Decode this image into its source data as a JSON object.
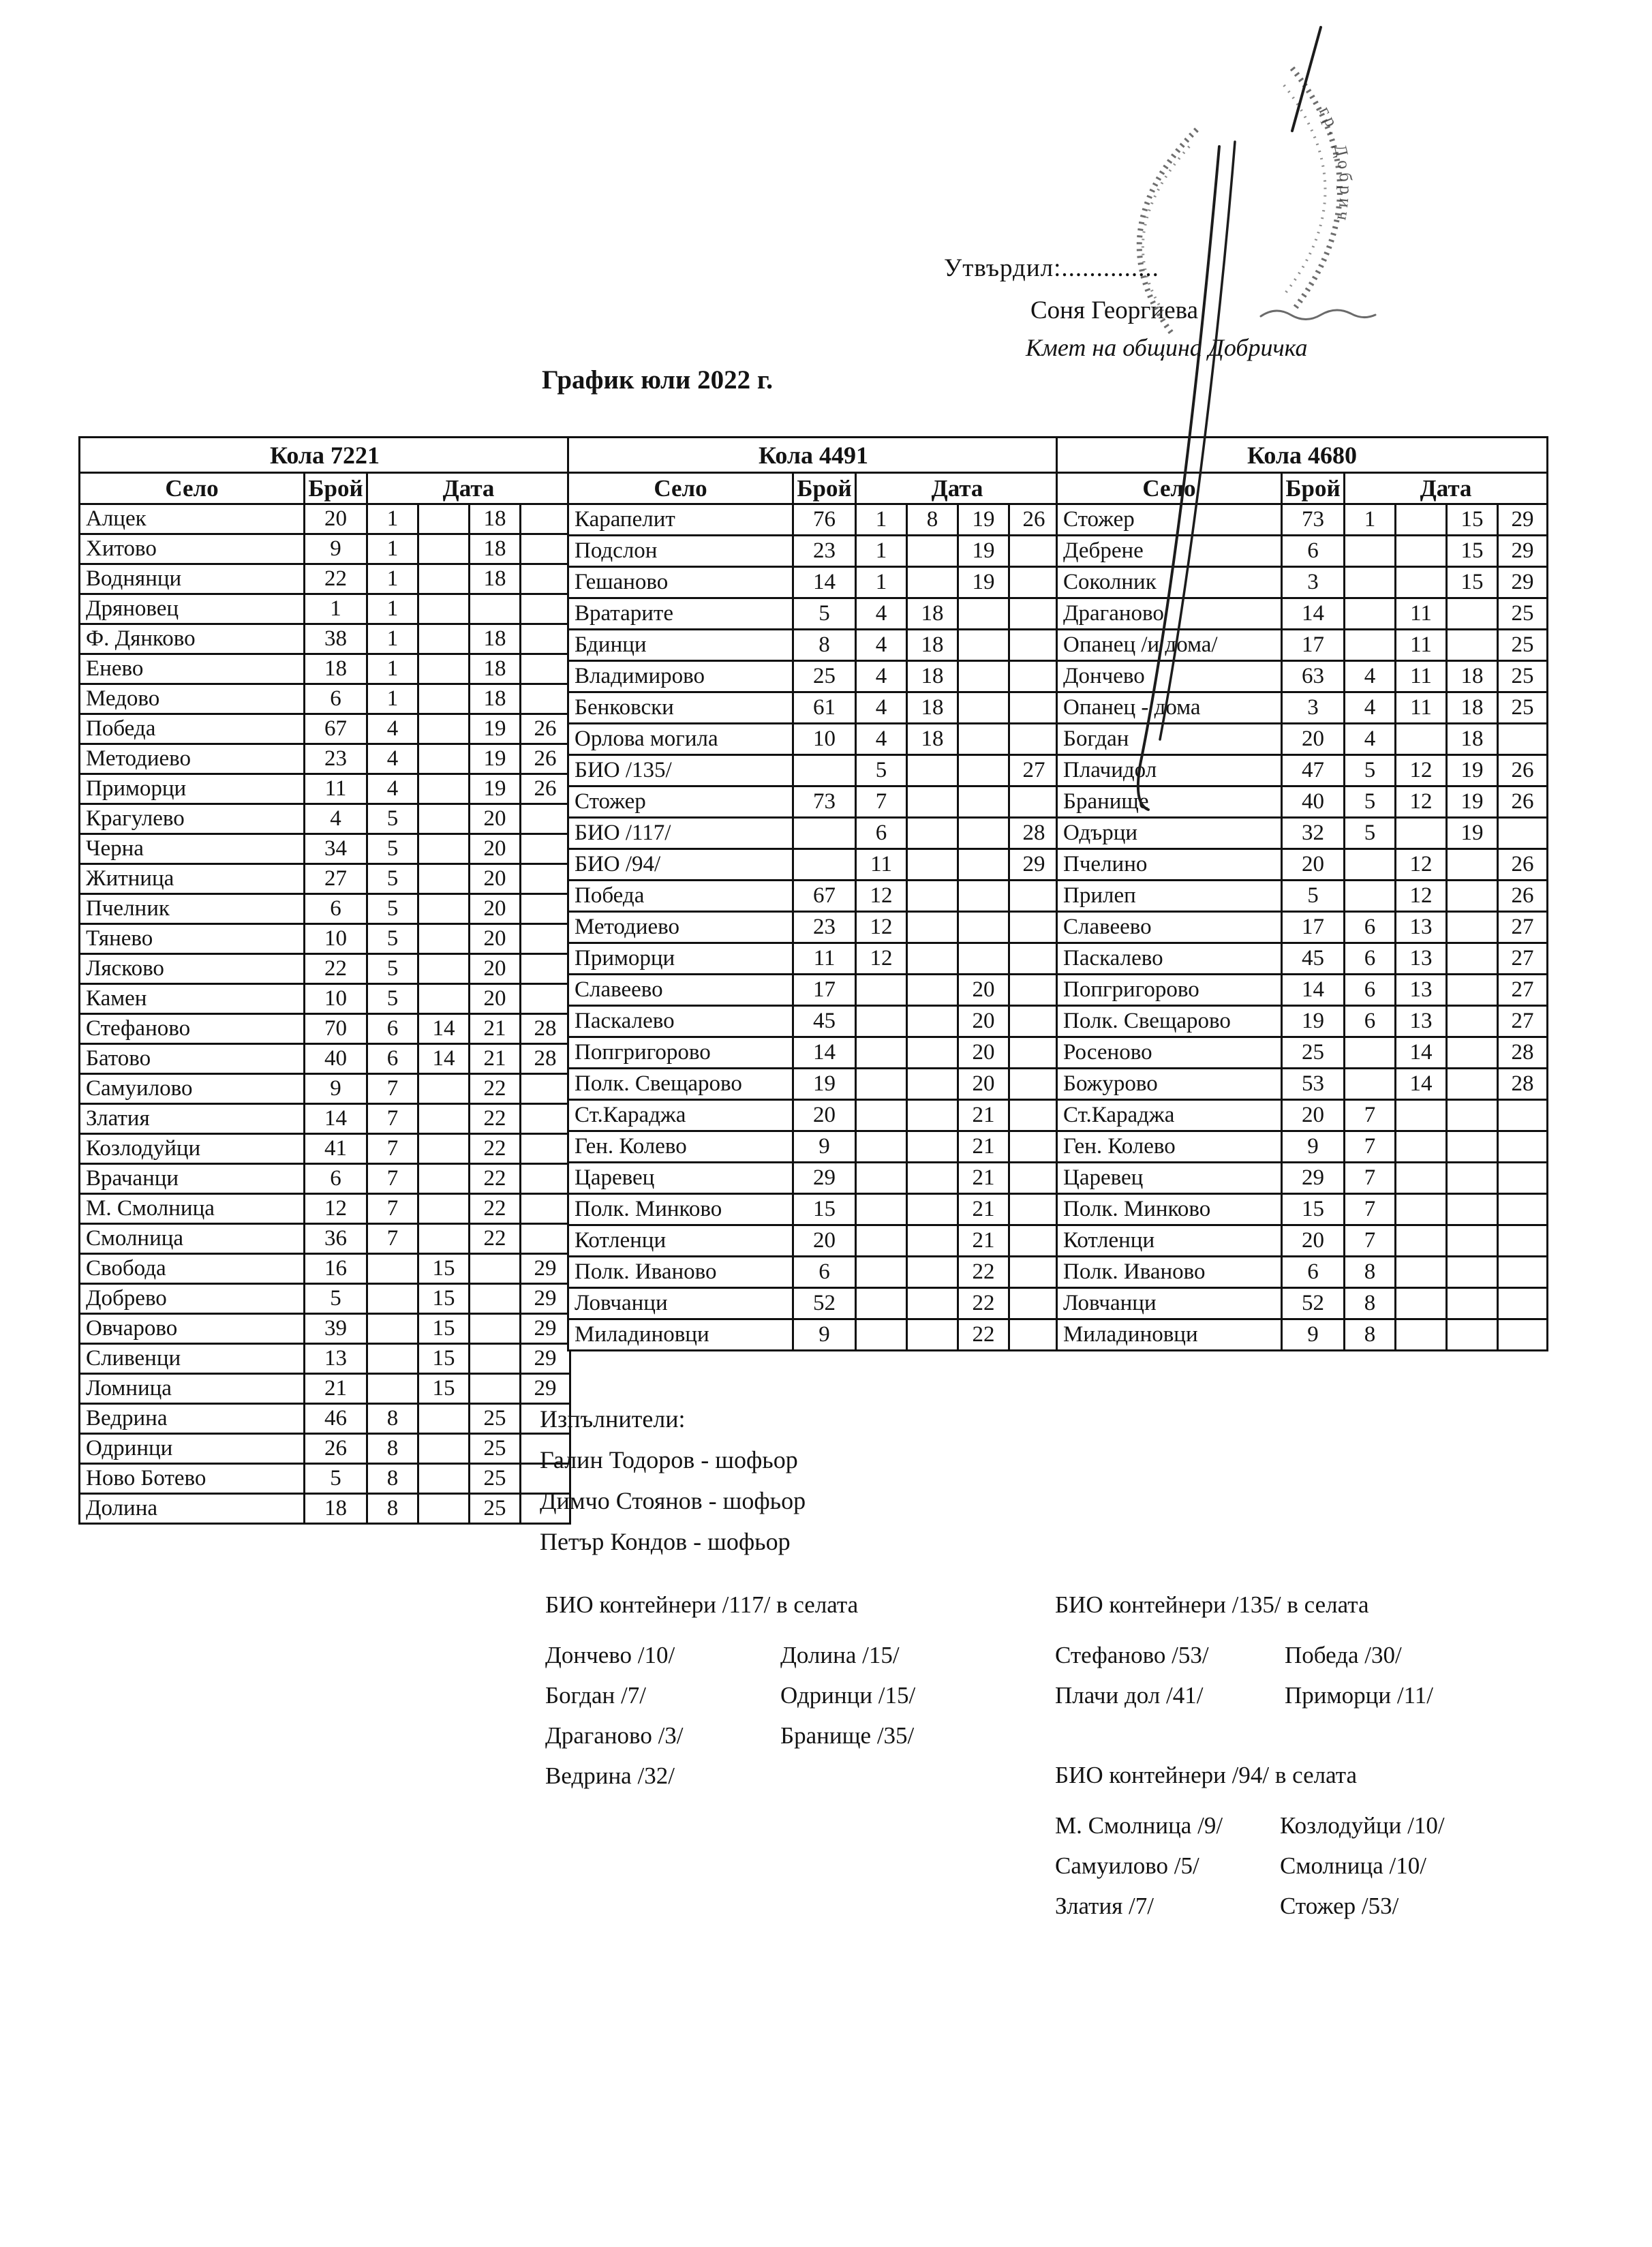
{
  "page": {
    "approved_label": "Утвърдил:..............",
    "approver_name": "Соня Георгиева",
    "approver_title": "Кмет  на община Добричка",
    "title": "График юли 2022 г."
  },
  "table_headers": {
    "village": "Село",
    "count": "Брой",
    "date": "Дата"
  },
  "tables": [
    {
      "title": "Кола 7221",
      "rows": [
        {
          "village": "Алцек",
          "count": "20",
          "dates": [
            "1",
            "",
            "18",
            ""
          ]
        },
        {
          "village": "Хитово",
          "count": "9",
          "dates": [
            "1",
            "",
            "18",
            ""
          ]
        },
        {
          "village": "Воднянци",
          "count": "22",
          "dates": [
            "1",
            "",
            "18",
            ""
          ]
        },
        {
          "village": "Дряновец",
          "count": "1",
          "dates": [
            "1",
            "",
            "",
            ""
          ]
        },
        {
          "village": "Ф. Дянково",
          "count": "38",
          "dates": [
            "1",
            "",
            "18",
            ""
          ]
        },
        {
          "village": "Енево",
          "count": "18",
          "dates": [
            "1",
            "",
            "18",
            ""
          ]
        },
        {
          "village": "Медово",
          "count": "6",
          "dates": [
            "1",
            "",
            "18",
            ""
          ]
        },
        {
          "village": "Победа",
          "count": "67",
          "dates": [
            "4",
            "",
            "19",
            "26"
          ]
        },
        {
          "village": "Методиево",
          "count": "23",
          "dates": [
            "4",
            "",
            "19",
            "26"
          ]
        },
        {
          "village": "Приморци",
          "count": "11",
          "dates": [
            "4",
            "",
            "19",
            "26"
          ]
        },
        {
          "village": "Крагулево",
          "count": "4",
          "dates": [
            "5",
            "",
            "20",
            ""
          ]
        },
        {
          "village": "Черна",
          "count": "34",
          "dates": [
            "5",
            "",
            "20",
            ""
          ]
        },
        {
          "village": "Житница",
          "count": "27",
          "dates": [
            "5",
            "",
            "20",
            ""
          ]
        },
        {
          "village": "Пчелник",
          "count": "6",
          "dates": [
            "5",
            "",
            "20",
            ""
          ]
        },
        {
          "village": "Тянево",
          "count": "10",
          "dates": [
            "5",
            "",
            "20",
            ""
          ]
        },
        {
          "village": "Лясково",
          "count": "22",
          "dates": [
            "5",
            "",
            "20",
            ""
          ]
        },
        {
          "village": "Камен",
          "count": "10",
          "dates": [
            "5",
            "",
            "20",
            ""
          ]
        },
        {
          "village": "Стефаново",
          "count": "70",
          "dates": [
            "6",
            "14",
            "21",
            "28"
          ]
        },
        {
          "village": "Батово",
          "count": "40",
          "dates": [
            "6",
            "14",
            "21",
            "28"
          ]
        },
        {
          "village": "Самуилово",
          "count": "9",
          "dates": [
            "7",
            "",
            "22",
            ""
          ]
        },
        {
          "village": "Златия",
          "count": "14",
          "dates": [
            "7",
            "",
            "22",
            ""
          ]
        },
        {
          "village": "Козлодуйци",
          "count": "41",
          "dates": [
            "7",
            "",
            "22",
            ""
          ]
        },
        {
          "village": "Врачанци",
          "count": "6",
          "dates": [
            "7",
            "",
            "22",
            ""
          ]
        },
        {
          "village": "М. Смолница",
          "count": "12",
          "dates": [
            "7",
            "",
            "22",
            ""
          ]
        },
        {
          "village": "Смолница",
          "count": "36",
          "dates": [
            "7",
            "",
            "22",
            ""
          ]
        },
        {
          "village": "Свобода",
          "count": "16",
          "dates": [
            "",
            "15",
            "",
            "29"
          ]
        },
        {
          "village": "Добрево",
          "count": "5",
          "dates": [
            "",
            "15",
            "",
            "29"
          ]
        },
        {
          "village": "Овчарово",
          "count": "39",
          "dates": [
            "",
            "15",
            "",
            "29"
          ]
        },
        {
          "village": "Сливенци",
          "count": "13",
          "dates": [
            "",
            "15",
            "",
            "29"
          ]
        },
        {
          "village": "Ломница",
          "count": "21",
          "dates": [
            "",
            "15",
            "",
            "29"
          ]
        },
        {
          "village": "Ведрина",
          "count": "46",
          "dates": [
            "8",
            "",
            "25",
            ""
          ]
        },
        {
          "village": "Одринци",
          "count": "26",
          "dates": [
            "8",
            "",
            "25",
            ""
          ]
        },
        {
          "village": "Ново Ботево",
          "count": "5",
          "dates": [
            "8",
            "",
            "25",
            ""
          ]
        },
        {
          "village": "Долина",
          "count": "18",
          "dates": [
            "8",
            "",
            "25",
            ""
          ]
        }
      ]
    },
    {
      "title": "Кола 4491",
      "rows": [
        {
          "village": "Карапелит",
          "count": "76",
          "dates": [
            "1",
            "8",
            "19",
            "26"
          ]
        },
        {
          "village": "Подслон",
          "count": "23",
          "dates": [
            "1",
            "",
            "19",
            ""
          ]
        },
        {
          "village": "Гешаново",
          "count": "14",
          "dates": [
            "1",
            "",
            "19",
            ""
          ]
        },
        {
          "village": "Вратарите",
          "count": "5",
          "dates": [
            "4",
            "18",
            "",
            ""
          ]
        },
        {
          "village": "Бдинци",
          "count": "8",
          "dates": [
            "4",
            "18",
            "",
            ""
          ]
        },
        {
          "village": "Владимирово",
          "count": "25",
          "dates": [
            "4",
            "18",
            "",
            ""
          ]
        },
        {
          "village": "Бенковски",
          "count": "61",
          "dates": [
            "4",
            "18",
            "",
            ""
          ]
        },
        {
          "village": "Орлова могила",
          "count": "10",
          "dates": [
            "4",
            "18",
            "",
            ""
          ]
        },
        {
          "village": "БИО /135/",
          "count": "",
          "dates": [
            "5",
            "",
            "",
            "27"
          ]
        },
        {
          "village": "Стожер",
          "count": "73",
          "dates": [
            "7",
            "",
            "",
            ""
          ]
        },
        {
          "village": "БИО /117/",
          "count": "",
          "dates": [
            "6",
            "",
            "",
            "28"
          ]
        },
        {
          "village": "БИО /94/",
          "count": "",
          "dates": [
            "11",
            "",
            "",
            "29"
          ]
        },
        {
          "village": "Победа",
          "count": "67",
          "dates": [
            "12",
            "",
            "",
            ""
          ]
        },
        {
          "village": "Методиево",
          "count": "23",
          "dates": [
            "12",
            "",
            "",
            ""
          ]
        },
        {
          "village": "Приморци",
          "count": "11",
          "dates": [
            "12",
            "",
            "",
            ""
          ]
        },
        {
          "village": "Славеево",
          "count": "17",
          "dates": [
            "",
            "",
            "20",
            ""
          ]
        },
        {
          "village": "Паскалево",
          "count": "45",
          "dates": [
            "",
            "",
            "20",
            ""
          ]
        },
        {
          "village": "Попгригорово",
          "count": "14",
          "dates": [
            "",
            "",
            "20",
            ""
          ]
        },
        {
          "village": "Полк. Свещарово",
          "count": "19",
          "dates": [
            "",
            "",
            "20",
            ""
          ]
        },
        {
          "village": "Ст.Караджа",
          "count": "20",
          "dates": [
            "",
            "",
            "21",
            ""
          ]
        },
        {
          "village": "Ген. Колево",
          "count": "9",
          "dates": [
            "",
            "",
            "21",
            ""
          ]
        },
        {
          "village": "Царевец",
          "count": "29",
          "dates": [
            "",
            "",
            "21",
            ""
          ]
        },
        {
          "village": "Полк. Минково",
          "count": "15",
          "dates": [
            "",
            "",
            "21",
            ""
          ]
        },
        {
          "village": "Котленци",
          "count": "20",
          "dates": [
            "",
            "",
            "21",
            ""
          ]
        },
        {
          "village": "Полк. Иваново",
          "count": "6",
          "dates": [
            "",
            "",
            "22",
            ""
          ]
        },
        {
          "village": "Ловчанци",
          "count": "52",
          "dates": [
            "",
            "",
            "22",
            ""
          ]
        },
        {
          "village": "Миладиновци",
          "count": "9",
          "dates": [
            "",
            "",
            "22",
            ""
          ]
        }
      ]
    },
    {
      "title": "Кола 4680",
      "rows": [
        {
          "village": "Стожер",
          "count": "73",
          "dates": [
            "1",
            "",
            "15",
            "29"
          ]
        },
        {
          "village": "Дебрене",
          "count": "6",
          "dates": [
            "",
            "",
            "15",
            "29"
          ]
        },
        {
          "village": "Соколник",
          "count": "3",
          "dates": [
            "",
            "",
            "15",
            "29"
          ]
        },
        {
          "village": "Драганово",
          "count": "14",
          "dates": [
            "",
            "11",
            "",
            "25"
          ]
        },
        {
          "village": "Опанец /и дома/",
          "count": "17",
          "dates": [
            "",
            "11",
            "",
            "25"
          ]
        },
        {
          "village": "Дончево",
          "count": "63",
          "dates": [
            "4",
            "11",
            "18",
            "25"
          ]
        },
        {
          "village": "Опанец - дома",
          "count": "3",
          "dates": [
            "4",
            "11",
            "18",
            "25"
          ]
        },
        {
          "village": "Богдан",
          "count": "20",
          "dates": [
            "4",
            "",
            "18",
            ""
          ]
        },
        {
          "village": "Плачидол",
          "count": "47",
          "dates": [
            "5",
            "12",
            "19",
            "26"
          ]
        },
        {
          "village": "Бранище",
          "count": "40",
          "dates": [
            "5",
            "12",
            "19",
            "26"
          ]
        },
        {
          "village": "Одърци",
          "count": "32",
          "dates": [
            "5",
            "",
            "19",
            ""
          ]
        },
        {
          "village": "Пчелино",
          "count": "20",
          "dates": [
            "",
            "12",
            "",
            "26"
          ]
        },
        {
          "village": "Прилеп",
          "count": "5",
          "dates": [
            "",
            "12",
            "",
            "26"
          ]
        },
        {
          "village": "Славеево",
          "count": "17",
          "dates": [
            "6",
            "13",
            "",
            "27"
          ]
        },
        {
          "village": "Паскалево",
          "count": "45",
          "dates": [
            "6",
            "13",
            "",
            "27"
          ]
        },
        {
          "village": "Попгригорово",
          "count": "14",
          "dates": [
            "6",
            "13",
            "",
            "27"
          ]
        },
        {
          "village": "Полк. Свещарово",
          "count": "19",
          "dates": [
            "6",
            "13",
            "",
            "27"
          ]
        },
        {
          "village": "Росеново",
          "count": "25",
          "dates": [
            "",
            "14",
            "",
            "28"
          ]
        },
        {
          "village": "Божурово",
          "count": "53",
          "dates": [
            "",
            "14",
            "",
            "28"
          ]
        },
        {
          "village": "Ст.Караджа",
          "count": "20",
          "dates": [
            "7",
            "",
            "",
            ""
          ]
        },
        {
          "village": "Ген. Колево",
          "count": "9",
          "dates": [
            "7",
            "",
            "",
            ""
          ]
        },
        {
          "village": "Царевец",
          "count": "29",
          "dates": [
            "7",
            "",
            "",
            ""
          ]
        },
        {
          "village": "Полк. Минково",
          "count": "15",
          "dates": [
            "7",
            "",
            "",
            ""
          ]
        },
        {
          "village": "Котленци",
          "count": "20",
          "dates": [
            "7",
            "",
            "",
            ""
          ]
        },
        {
          "village": "Полк. Иваново",
          "count": "6",
          "dates": [
            "8",
            "",
            "",
            ""
          ]
        },
        {
          "village": "Ловчанци",
          "count": "52",
          "dates": [
            "8",
            "",
            "",
            ""
          ]
        },
        {
          "village": "Миладиновци",
          "count": "9",
          "dates": [
            "8",
            "",
            "",
            ""
          ]
        }
      ]
    }
  ],
  "executors": {
    "heading": "Изпълнители:",
    "names": [
      "Галин Тодоров - шофьор",
      "Димчо Стоянов - шофьор",
      "Петър Кондов - шофьор"
    ]
  },
  "bio_sections": [
    {
      "title": "БИО контейнери /117/ в селата",
      "col1": [
        "Дончево /10/",
        "Богдан /7/",
        "Драганово /3/",
        "Ведрина /32/"
      ],
      "col2": [
        "Долина /15/",
        "Одринци /15/",
        "Бранище /35/"
      ]
    },
    {
      "title": "БИО контейнери /135/ в селата",
      "col1": [
        "Стефаново /53/",
        "Плачи дол /41/"
      ],
      "col2": [
        "Победа /30/",
        "Приморци /11/"
      ]
    },
    {
      "title": "БИО контейнери /94/ в селата",
      "col1": [
        "М. Смолница /9/",
        "Самуилово /5/",
        "Златия /7/"
      ],
      "col2": [
        "Козлодуйци /10/",
        "Смолница /10/",
        "Стожер /53/"
      ]
    }
  ],
  "stamp": {
    "text": "гр. Добрич"
  }
}
